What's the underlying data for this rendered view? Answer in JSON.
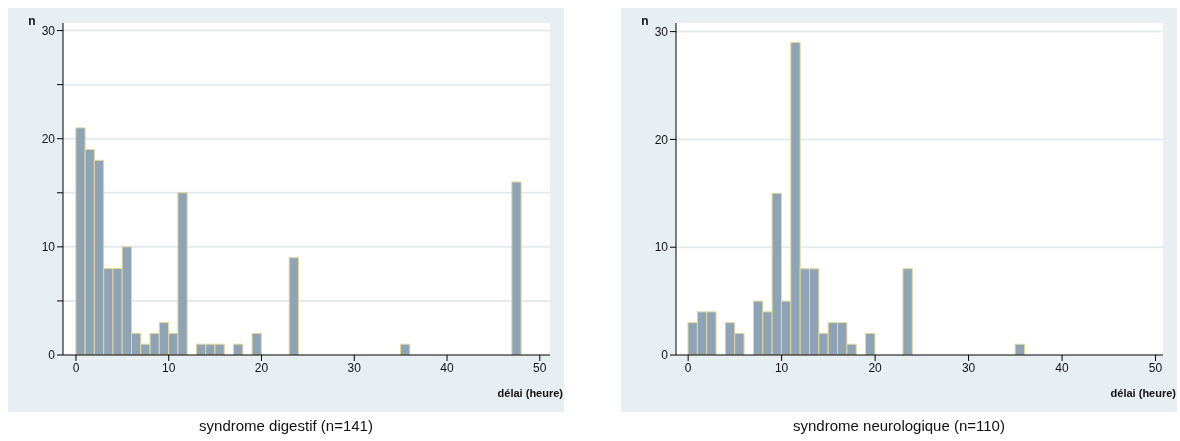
{
  "chart_data": [
    {
      "type": "histogram",
      "title": "syndrome digestif (n=141)",
      "xlabel": "délai (heure)",
      "ylabel": "n",
      "color": "#8fa3b6",
      "bins": [
        0,
        1,
        2,
        3,
        4,
        5,
        6,
        7,
        8,
        9,
        10,
        11,
        12,
        13,
        14,
        15,
        16,
        17,
        18,
        19,
        20,
        21,
        22,
        23,
        24,
        25,
        26,
        27,
        28,
        29,
        30,
        31,
        32,
        33,
        34,
        35,
        36,
        37,
        38,
        39,
        40,
        41,
        42,
        43,
        44,
        45,
        46,
        47,
        48
      ],
      "values": [
        21,
        19,
        18,
        8,
        8,
        10,
        2,
        1,
        2,
        3,
        2,
        15,
        0,
        1,
        1,
        1,
        0,
        1,
        0,
        2,
        0,
        0,
        0,
        9,
        0,
        0,
        0,
        0,
        0,
        0,
        0,
        0,
        0,
        0,
        0,
        1,
        0,
        0,
        0,
        0,
        0,
        0,
        0,
        0,
        0,
        0,
        0,
        16
      ],
      "xlim": [
        -1.4,
        51.1
      ],
      "ylim": [
        0,
        30.7
      ],
      "xticks": [
        0,
        10,
        20,
        30,
        40,
        50
      ],
      "yticks": [
        0,
        {
          "value": 5,
          "label": null
        },
        10,
        {
          "value": 15,
          "label": null
        },
        20,
        {
          "value": 25,
          "label": null
        },
        30
      ],
      "grid": "y"
    },
    {
      "type": "histogram",
      "title": "syndrome neurologique (n=110)",
      "xlabel": "délai (heure)",
      "ylabel": "n",
      "color": "#8fa3b6",
      "bins": [
        0,
        1,
        2,
        3,
        4,
        5,
        6,
        7,
        8,
        9,
        10,
        11,
        12,
        13,
        14,
        15,
        16,
        17,
        18,
        19,
        20,
        21,
        22,
        23,
        24,
        25,
        26,
        27,
        28,
        29,
        30,
        31,
        32,
        33,
        34,
        35,
        36
      ],
      "values": [
        3,
        4,
        4,
        0,
        3,
        2,
        0,
        5,
        4,
        15,
        5,
        29,
        8,
        8,
        2,
        3,
        3,
        1,
        0,
        2,
        0,
        0,
        0,
        8,
        0,
        0,
        0,
        0,
        0,
        0,
        0,
        0,
        0,
        0,
        0,
        1
      ],
      "xlim": [
        -1.3,
        50.8
      ],
      "ylim": [
        0,
        30.8
      ],
      "xticks": [
        0,
        10,
        20,
        30,
        40,
        50
      ],
      "yticks": [
        0,
        10,
        20,
        30
      ],
      "grid": "y"
    }
  ]
}
